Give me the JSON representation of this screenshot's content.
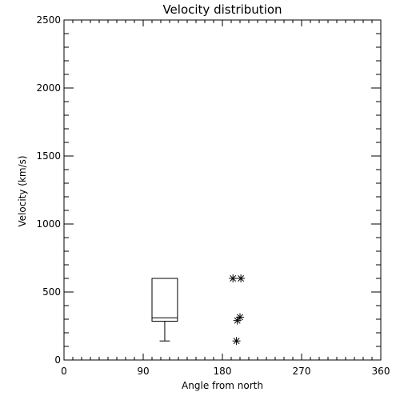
{
  "chart_data": {
    "type": "box",
    "title": "Velocity distribution",
    "xlabel": "Angle from north",
    "ylabel": "Velocity (km/s)",
    "xlim": [
      0,
      360
    ],
    "ylim": [
      0,
      2500
    ],
    "xticks": [
      0,
      90,
      180,
      270,
      360
    ],
    "xtick_labels": [
      "0",
      "90",
      "180",
      "270",
      "360"
    ],
    "yticks": [
      0,
      500,
      1000,
      1500,
      2000,
      2500
    ],
    "ytick_labels": [
      "0",
      "500",
      "1000",
      "1500",
      "2000",
      "2500"
    ],
    "x_minor_step": 10,
    "y_minor_step": 100,
    "grid": false,
    "legend": "none",
    "box": {
      "x_left": 100,
      "x_right": 129,
      "q1": 285,
      "median": 310,
      "q3": 600,
      "whisker_low": 140,
      "whisker_high": 600
    },
    "points": [
      {
        "x": 192,
        "y": 600
      },
      {
        "x": 201,
        "y": 600
      },
      {
        "x": 197,
        "y": 290
      },
      {
        "x": 200,
        "y": 315
      },
      {
        "x": 196,
        "y": 140
      }
    ],
    "colors": {
      "axis": "#000000",
      "mark": "#000000",
      "background": "#ffffff"
    }
  }
}
